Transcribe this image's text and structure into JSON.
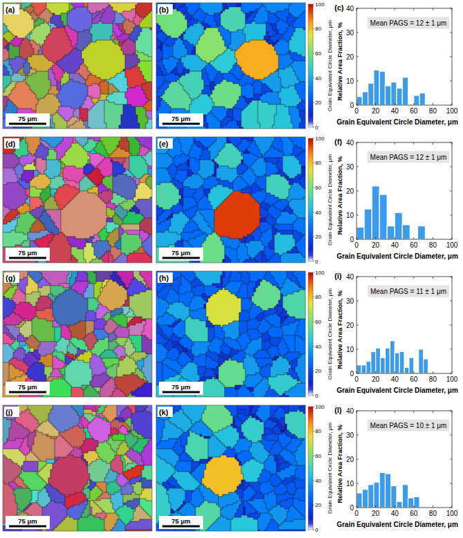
{
  "chart_data": [
    {
      "type": "histogram",
      "title": "(c)",
      "annotation": "Mean PAGS = 12 ± 1 μm",
      "x_label": "Grain Equivalent Circle Diameter, μm",
      "y_label": "Relative Area Fraction, %",
      "bins": [
        0,
        6,
        12,
        18,
        24,
        30,
        36,
        42,
        48,
        54,
        60,
        66,
        72
      ],
      "values": [
        3.5,
        5.5,
        9,
        14.5,
        14,
        8,
        9.5,
        7,
        11.5,
        0,
        4,
        5
      ],
      "color": "#3d9be9",
      "xlim": [
        0,
        100
      ],
      "xticks": [
        0,
        20,
        40,
        60,
        80,
        100
      ],
      "ylim": [
        0,
        40
      ],
      "yticks": [
        0,
        10,
        20,
        30,
        40
      ]
    },
    {
      "type": "histogram",
      "title": "(f)",
      "annotation": "Mean PAGS = 12 ± 1 μm",
      "x_label": "Grain Equivalent Circle Diameter, μm",
      "y_label": "Relative Area Fraction, %",
      "bins": [
        0,
        8,
        16,
        24,
        32,
        40,
        48,
        56,
        64,
        72
      ],
      "values": [
        5,
        12.5,
        22,
        18.5,
        5.5,
        11,
        6,
        0,
        5.5
      ],
      "color": "#3d9be9",
      "xlim": [
        0,
        100
      ],
      "xticks": [
        0,
        20,
        40,
        60,
        80,
        100
      ],
      "ylim": [
        0,
        40
      ],
      "yticks": [
        0,
        10,
        20,
        30,
        40
      ]
    },
    {
      "type": "histogram",
      "title": "(i)",
      "annotation": "Mean PAGS = 11 ± 1 μm",
      "x_label": "Grain Equivalent Circle Diameter, μm",
      "y_label": "Relative Area Fraction, %",
      "bins": [
        0,
        5,
        10,
        15,
        20,
        25,
        30,
        35,
        40,
        45,
        50,
        55,
        60,
        65,
        70,
        75
      ],
      "values": [
        3.5,
        3.5,
        5,
        9,
        10.5,
        6.5,
        10.5,
        13.5,
        8.5,
        9,
        2.5,
        6.5,
        0,
        10,
        6
      ],
      "color": "#3d9be9",
      "xlim": [
        0,
        100
      ],
      "xticks": [
        0,
        20,
        40,
        60,
        80,
        100
      ],
      "ylim": [
        0,
        40
      ],
      "yticks": [
        0,
        10,
        20,
        30,
        40
      ]
    },
    {
      "type": "histogram",
      "title": "(l)",
      "annotation": "Mean PAGS = 10 ± 1 μm",
      "x_label": "Grain Equivalent Circle Diameter, μm",
      "y_label": "Relative Area Fraction, %",
      "bins": [
        0,
        6,
        12,
        18,
        24,
        30,
        36,
        42,
        48,
        54,
        60,
        66
      ],
      "values": [
        6,
        7.5,
        9.5,
        10.5,
        14.5,
        14,
        9,
        2.5,
        9.5,
        4,
        4.5
      ],
      "color": "#3d9be9",
      "xlim": [
        0,
        100
      ],
      "xticks": [
        0,
        20,
        40,
        60,
        80,
        100
      ],
      "ylim": [
        0,
        40
      ],
      "yticks": [
        0,
        10,
        20,
        30,
        40
      ]
    }
  ],
  "maps": [
    {
      "title": "(a)",
      "scale_bar": "75 μm"
    },
    {
      "title": "(b)",
      "scale_bar": "75 μm",
      "colorbar": {
        "label": "Grain Equivalent Circle Diameter, μm",
        "range": [
          0,
          100
        ],
        "ticks": [
          0,
          20,
          40,
          60,
          80,
          100
        ]
      }
    },
    {
      "title": "(d)",
      "scale_bar": "75 μm"
    },
    {
      "title": "(e)",
      "scale_bar": "75 μm",
      "colorbar": {
        "label": "Grain Equivalent Circle Diameter, μm",
        "range": [
          0,
          100
        ],
        "ticks": [
          0,
          20,
          40,
          60,
          80,
          100
        ]
      }
    },
    {
      "title": "(g)",
      "scale_bar": "75 μm"
    },
    {
      "title": "(h)",
      "scale_bar": "75 μm",
      "colorbar": {
        "label": "Grain Equivalent Circle Diameter, μm",
        "range": [
          0,
          100
        ],
        "ticks": [
          0,
          20,
          40,
          60,
          80,
          100
        ]
      }
    },
    {
      "title": "(j)",
      "scale_bar": "75 μm"
    },
    {
      "title": "(k)",
      "scale_bar": "75 μm",
      "colorbar": {
        "label": "Grain Equivalent Circle Diameter, μm",
        "range": [
          0,
          100
        ],
        "ticks": [
          0,
          20,
          40,
          60,
          80,
          100
        ]
      }
    }
  ]
}
